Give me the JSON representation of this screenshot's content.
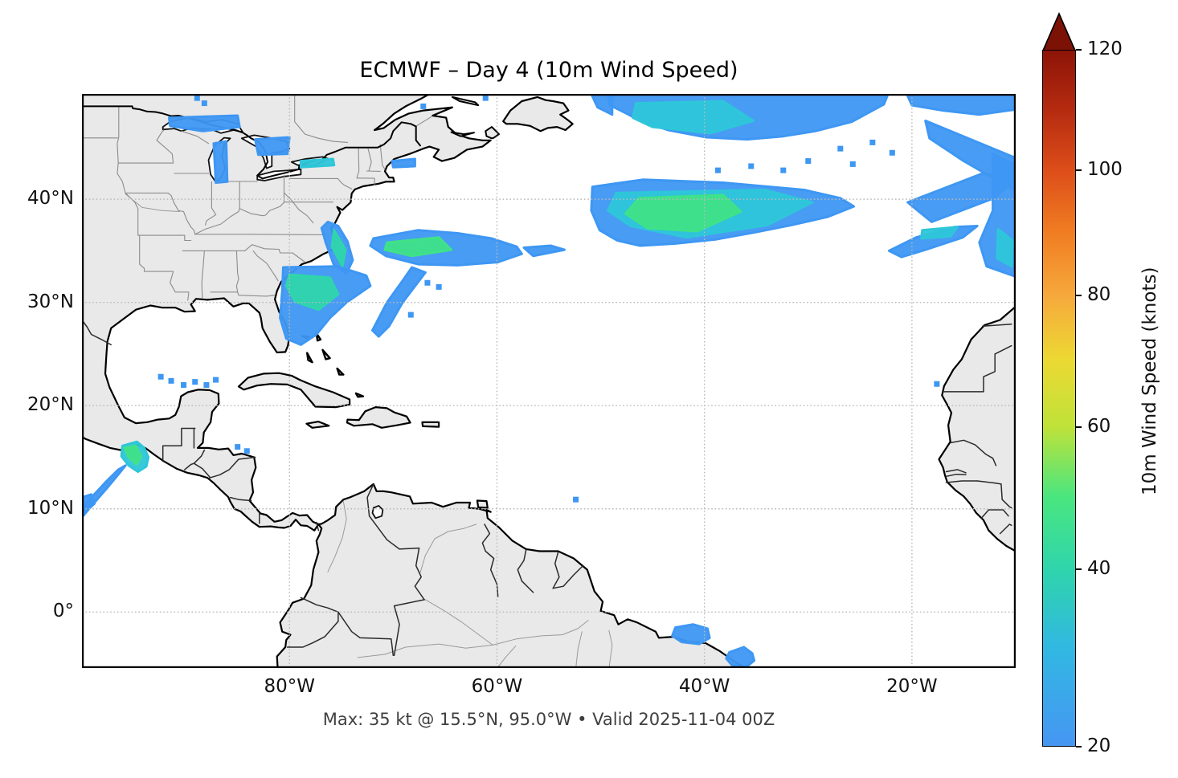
{
  "figure": {
    "title": "ECMWF – Day 4 (10m Wind Speed)",
    "caption": "Max: 35 kt @ 15.5°N, 95.0°W • Valid 2025-11-04 00Z",
    "background": "#ffffff"
  },
  "axes": {
    "x_ticks": [
      {
        "label": "80°W",
        "lon": -80
      },
      {
        "label": "60°W",
        "lon": -60
      },
      {
        "label": "40°W",
        "lon": -40
      },
      {
        "label": "20°W",
        "lon": -20
      }
    ],
    "y_ticks": [
      {
        "label": "40°N",
        "lat": 40
      },
      {
        "label": "30°N",
        "lat": 30
      },
      {
        "label": "20°N",
        "lat": 20
      },
      {
        "label": "10°N",
        "lat": 10
      },
      {
        "label": "0°",
        "lat": 0
      }
    ],
    "extent": {
      "lon_min": -100,
      "lon_max": -10,
      "lat_min": -5.45,
      "lat_max": 50.2
    },
    "grid_lats": [
      40,
      30,
      20,
      10,
      0
    ],
    "grid_lons": [
      -80,
      -60,
      -40,
      -20
    ]
  },
  "colorbar": {
    "label": "10m Wind Speed (knots)",
    "ticks": [
      20,
      40,
      60,
      80,
      100,
      120
    ],
    "vmin": 20,
    "vmax": 120,
    "gamma": 0.85,
    "over_color": "#7c1105",
    "stops": [
      {
        "v": 20,
        "c": "#4696f2"
      },
      {
        "v": 30,
        "c": "#31b8e2"
      },
      {
        "v": 40,
        "c": "#2fd5ab"
      },
      {
        "v": 50,
        "c": "#4ae67f"
      },
      {
        "v": 60,
        "c": "#bfe239"
      },
      {
        "v": 70,
        "c": "#ecd933"
      },
      {
        "v": 80,
        "c": "#f6a83c"
      },
      {
        "v": 90,
        "c": "#f07d22"
      },
      {
        "v": 100,
        "c": "#dd4e1a"
      },
      {
        "v": 110,
        "c": "#b52b10"
      },
      {
        "v": 120,
        "c": "#8d1407"
      }
    ]
  },
  "chart_data": {
    "type": "heatmap",
    "units": "knots",
    "field": "10m Wind Speed",
    "model": "ECMWF",
    "lead": "Day 4",
    "valid": "2025-11-04 00Z",
    "shading_threshold_kt": 20,
    "max": {
      "value_kt": 35,
      "lat": 15.5,
      "lon": -95.0
    },
    "land_color": "#e9e9e9",
    "ocean_color": "#ffffff",
    "speck_fill": "#3e97f3",
    "areas": [
      {
        "name": "natl-top-band",
        "kt": 24,
        "fill": "#3e97f3",
        "pts": [
          [
            -49.3,
            50.2
          ],
          [
            -22.3,
            50.2
          ],
          [
            -22.7,
            49.2
          ],
          [
            -25.8,
            47.5
          ],
          [
            -29.3,
            46.6
          ],
          [
            -32.4,
            46.1
          ],
          [
            -35.9,
            45.8
          ],
          [
            -39.8,
            46.0
          ],
          [
            -43.5,
            46.7
          ],
          [
            -46.0,
            47.5
          ],
          [
            -47.7,
            48.4
          ],
          [
            -49.1,
            49.1
          ]
        ]
      },
      {
        "name": "natl-top-core",
        "kt": 29,
        "fill": "#2ec6d9",
        "pts": [
          [
            -46.6,
            49.3
          ],
          [
            -38.2,
            49.5
          ],
          [
            -35.3,
            47.6
          ],
          [
            -39.4,
            46.4
          ],
          [
            -45.0,
            47.0
          ],
          [
            -46.9,
            47.9
          ]
        ]
      },
      {
        "name": "natl-topright",
        "kt": 23,
        "fill": "#3e97f3",
        "pts": [
          [
            -20.5,
            50.2
          ],
          [
            -10.0,
            50.2
          ],
          [
            -10.0,
            48.7
          ],
          [
            -13.5,
            48.2
          ],
          [
            -17.0,
            48.6
          ],
          [
            -20.0,
            49.1
          ]
        ]
      },
      {
        "name": "natl-tr-diag",
        "kt": 23,
        "fill": "#3e97f3",
        "pts": [
          [
            -18.7,
            47.6
          ],
          [
            -10.0,
            44.0
          ],
          [
            -10.0,
            40.8
          ],
          [
            -15.0,
            43.7
          ],
          [
            -18.3,
            45.9
          ]
        ]
      },
      {
        "name": "natl-main-band",
        "kt": 25,
        "fill": "#3e97f3",
        "pts": [
          [
            -50.8,
            41.2
          ],
          [
            -45.9,
            41.9
          ],
          [
            -38.2,
            41.6
          ],
          [
            -30.4,
            40.9
          ],
          [
            -26.9,
            40.1
          ],
          [
            -25.6,
            39.3
          ],
          [
            -28.1,
            38.3
          ],
          [
            -31.6,
            37.5
          ],
          [
            -35.1,
            36.8
          ],
          [
            -38.9,
            36.1
          ],
          [
            -42.8,
            35.7
          ],
          [
            -46.2,
            35.5
          ],
          [
            -48.4,
            36.0
          ],
          [
            -50.1,
            37.0
          ],
          [
            -50.9,
            38.9
          ]
        ]
      },
      {
        "name": "natl-main-mid",
        "kt": 29,
        "fill": "#2ec6d9",
        "pts": [
          [
            -48.5,
            40.6
          ],
          [
            -34.2,
            40.9
          ],
          [
            -29.6,
            39.7
          ],
          [
            -33.9,
            37.5
          ],
          [
            -41.7,
            36.3
          ],
          [
            -47.1,
            37.4
          ],
          [
            -49.3,
            38.9
          ]
        ]
      },
      {
        "name": "natl-main-core",
        "kt": 33,
        "fill": "#3fe288",
        "pts": [
          [
            -46.3,
            40.1
          ],
          [
            -38.2,
            40.4
          ],
          [
            -36.5,
            38.8
          ],
          [
            -40.7,
            36.9
          ],
          [
            -45.5,
            37.2
          ],
          [
            -47.6,
            38.6
          ]
        ]
      },
      {
        "name": "natl-right-band",
        "kt": 24,
        "fill": "#3e97f3",
        "pts": [
          [
            -12.2,
            44.4
          ],
          [
            -10.0,
            43.3
          ],
          [
            -10.0,
            32.5
          ],
          [
            -12.8,
            33.5
          ],
          [
            -13.5,
            35.8
          ],
          [
            -12.2,
            38.9
          ]
        ]
      },
      {
        "name": "natl-right-core",
        "kt": 28,
        "fill": "#2ec6d9",
        "pts": [
          [
            -11.7,
            37.1
          ],
          [
            -10.3,
            36.0
          ],
          [
            -10.4,
            33.5
          ],
          [
            -11.8,
            34.3
          ]
        ]
      },
      {
        "name": "natl-mid-diag",
        "kt": 23,
        "fill": "#3e97f3",
        "pts": [
          [
            -20.4,
            39.7
          ],
          [
            -13.2,
            42.5
          ],
          [
            -10.0,
            41.9
          ],
          [
            -12.1,
            40.1
          ],
          [
            -18.1,
            37.8
          ]
        ]
      },
      {
        "name": "natl-low-diag",
        "kt": 24,
        "fill": "#3e97f3",
        "pts": [
          [
            -22.2,
            35.0
          ],
          [
            -19.6,
            36.3
          ],
          [
            -15.9,
            37.3
          ],
          [
            -13.7,
            37.4
          ],
          [
            -15.1,
            36.3
          ],
          [
            -18.7,
            35.1
          ],
          [
            -21.0,
            34.4
          ]
        ]
      },
      {
        "name": "natl-low-core",
        "kt": 28,
        "fill": "#2ec6d9",
        "pts": [
          [
            -19.0,
            37.0
          ],
          [
            -15.6,
            37.3
          ],
          [
            -16.3,
            36.4
          ],
          [
            -19.1,
            36.2
          ]
        ]
      },
      {
        "name": "carolina-coast",
        "kt": 26,
        "fill": "#3e97f3",
        "pts": [
          [
            -76.3,
            37.8
          ],
          [
            -75.3,
            37.4
          ],
          [
            -74.4,
            35.9
          ],
          [
            -73.9,
            34.1
          ],
          [
            -74.5,
            32.8
          ],
          [
            -75.7,
            33.6
          ],
          [
            -76.5,
            35.8
          ],
          [
            -76.9,
            37.2
          ]
        ]
      },
      {
        "name": "carolina-core",
        "kt": 30,
        "fill": "#2fd5ab",
        "pts": [
          [
            -75.7,
            37.0
          ],
          [
            -74.6,
            35.1
          ],
          [
            -74.9,
            33.5
          ],
          [
            -75.9,
            35.4
          ]
        ]
      },
      {
        "name": "gulfstream-oval",
        "kt": 26,
        "fill": "#3e97f3",
        "pts": [
          [
            -71.9,
            36.2
          ],
          [
            -67.6,
            37.0
          ],
          [
            -63.8,
            36.7
          ],
          [
            -60.5,
            36.2
          ],
          [
            -58.1,
            35.4
          ],
          [
            -57.6,
            34.7
          ],
          [
            -59.9,
            33.9
          ],
          [
            -63.8,
            33.6
          ],
          [
            -67.6,
            33.7
          ],
          [
            -70.7,
            34.5
          ],
          [
            -72.2,
            35.5
          ]
        ]
      },
      {
        "name": "gulfstream-core",
        "kt": 32,
        "fill": "#3fe288",
        "pts": [
          [
            -70.6,
            35.8
          ],
          [
            -65.6,
            36.3
          ],
          [
            -64.4,
            35.1
          ],
          [
            -68.2,
            34.5
          ],
          [
            -70.8,
            35.1
          ]
        ]
      },
      {
        "name": "gulfstream-tail",
        "kt": 23,
        "fill": "#3e97f3",
        "pts": [
          [
            -57.4,
            35.3
          ],
          [
            -54.8,
            35.5
          ],
          [
            -53.5,
            35.1
          ],
          [
            -56.5,
            34.5
          ]
        ]
      },
      {
        "name": "se-coast-blob",
        "kt": 26,
        "fill": "#3e97f3",
        "pts": [
          [
            -80.6,
            33.4
          ],
          [
            -75.4,
            33.5
          ],
          [
            -72.6,
            32.6
          ],
          [
            -72.2,
            31.6
          ],
          [
            -74.5,
            30.0
          ],
          [
            -76.1,
            28.5
          ],
          [
            -77.4,
            26.9
          ],
          [
            -78.9,
            25.9
          ],
          [
            -80.3,
            26.5
          ],
          [
            -80.9,
            28.5
          ],
          [
            -80.7,
            31.1
          ]
        ]
      },
      {
        "name": "se-coast-core",
        "kt": 29,
        "fill": "#2fd5ab",
        "pts": [
          [
            -80.0,
            32.7
          ],
          [
            -76.1,
            32.4
          ],
          [
            -75.3,
            30.8
          ],
          [
            -77.2,
            29.3
          ],
          [
            -79.5,
            30.1
          ],
          [
            -80.3,
            31.6
          ]
        ]
      },
      {
        "name": "se-diag-streak",
        "kt": 23,
        "fill": "#3e97f3",
        "pts": [
          [
            -68.2,
            33.4
          ],
          [
            -66.9,
            32.9
          ],
          [
            -69.1,
            30.0
          ],
          [
            -70.4,
            27.7
          ],
          [
            -71.4,
            26.7
          ],
          [
            -72.0,
            27.3
          ],
          [
            -70.6,
            30.0
          ],
          [
            -69.1,
            32.1
          ]
        ]
      },
      {
        "name": "lake-superior-patch",
        "kt": 22,
        "fill": "#3e97f3",
        "pts": [
          [
            -91.6,
            47.9
          ],
          [
            -85.0,
            48.1
          ],
          [
            -84.8,
            47.0
          ],
          [
            -88.4,
            46.6
          ],
          [
            -91.5,
            47.1
          ]
        ]
      },
      {
        "name": "lake-huron-patch",
        "kt": 22,
        "fill": "#3e97f3",
        "pts": [
          [
            -83.3,
            45.8
          ],
          [
            -80.0,
            46.0
          ],
          [
            -80.2,
            44.4
          ],
          [
            -83.0,
            44.3
          ]
        ]
      },
      {
        "name": "lake-michigan-patch",
        "kt": 22,
        "fill": "#3e97f3",
        "pts": [
          [
            -87.3,
            45.4
          ],
          [
            -86.1,
            45.6
          ],
          [
            -86.0,
            41.7
          ],
          [
            -87.1,
            41.6
          ]
        ]
      },
      {
        "name": "lake-erie-line",
        "kt": 27,
        "fill": "#2ec6d9",
        "pts": [
          [
            -78.9,
            43.7
          ],
          [
            -75.8,
            43.9
          ],
          [
            -75.7,
            43.3
          ],
          [
            -78.9,
            43.1
          ]
        ]
      },
      {
        "name": "maine-coast-line",
        "kt": 22,
        "fill": "#3e97f3",
        "pts": [
          [
            -70.1,
            43.7
          ],
          [
            -67.9,
            43.9
          ],
          [
            -67.9,
            43.2
          ],
          [
            -70.0,
            43.1
          ]
        ]
      },
      {
        "name": "nfld-corner",
        "kt": 22,
        "fill": "#3e97f3",
        "pts": [
          [
            -50.9,
            50.2
          ],
          [
            -48.9,
            50.2
          ],
          [
            -48.9,
            48.2
          ],
          [
            -50.3,
            48.9
          ]
        ]
      },
      {
        "name": "tehuantepec-jet",
        "kt": 30,
        "fill": "#2ec6d9",
        "pts": [
          [
            -96.1,
            16.1
          ],
          [
            -94.7,
            16.5
          ],
          [
            -94.0,
            15.9
          ],
          [
            -93.6,
            15.0
          ],
          [
            -93.8,
            14.1
          ],
          [
            -94.6,
            13.6
          ],
          [
            -95.5,
            14.2
          ],
          [
            -96.2,
            15.1
          ]
        ]
      },
      {
        "name": "tehuantepec-core",
        "kt": 35,
        "fill": "#3fe288",
        "pts": [
          [
            -95.9,
            15.9
          ],
          [
            -94.8,
            16.1
          ],
          [
            -94.3,
            15.1
          ],
          [
            -94.7,
            14.3
          ],
          [
            -95.5,
            15.0
          ]
        ]
      },
      {
        "name": "tehuantepec-tail",
        "kt": 23,
        "fill": "#3e97f3",
        "pts": [
          [
            -95.8,
            14.2
          ],
          [
            -96.6,
            13.2
          ],
          [
            -97.6,
            12.0
          ],
          [
            -98.8,
            10.6
          ],
          [
            -99.9,
            9.3
          ],
          [
            -100.0,
            10.1
          ],
          [
            -98.9,
            11.3
          ],
          [
            -97.7,
            12.6
          ],
          [
            -96.5,
            13.8
          ]
        ]
      },
      {
        "name": "left-edge-blob",
        "kt": 24,
        "fill": "#3e97f3",
        "pts": [
          [
            -100.0,
            11.1
          ],
          [
            -99.1,
            11.4
          ],
          [
            -98.8,
            10.5
          ],
          [
            -99.7,
            9.7
          ],
          [
            -100.0,
            9.8
          ]
        ]
      },
      {
        "name": "brazil-coast-1",
        "kt": 24,
        "fill": "#3e97f3",
        "pts": [
          [
            -42.8,
            -1.5
          ],
          [
            -41.1,
            -1.2
          ],
          [
            -39.7,
            -1.6
          ],
          [
            -39.5,
            -2.5
          ],
          [
            -40.5,
            -3.1
          ],
          [
            -42.2,
            -2.9
          ],
          [
            -43.1,
            -2.3
          ]
        ]
      },
      {
        "name": "brazil-coast-2",
        "kt": 24,
        "fill": "#3e97f3",
        "pts": [
          [
            -37.6,
            -3.9
          ],
          [
            -36.2,
            -3.4
          ],
          [
            -35.4,
            -4.0
          ],
          [
            -35.2,
            -4.7
          ],
          [
            -36.0,
            -5.35
          ],
          [
            -37.3,
            -5.2
          ],
          [
            -37.9,
            -4.5
          ]
        ]
      }
    ],
    "specks": [
      [
        -26.9,
        44.9
      ],
      [
        -23.8,
        45.5
      ],
      [
        -21.9,
        44.5
      ],
      [
        -30.0,
        43.7
      ],
      [
        -25.7,
        43.4
      ],
      [
        -32.4,
        42.8
      ],
      [
        -35.5,
        43.2
      ],
      [
        -38.7,
        42.8
      ],
      [
        -66.7,
        31.9
      ],
      [
        -65.6,
        31.5
      ],
      [
        -68.3,
        28.8
      ],
      [
        -88.9,
        49.8
      ],
      [
        -88.2,
        49.3
      ],
      [
        -67.1,
        49.0
      ],
      [
        -61.1,
        49.8
      ],
      [
        -92.4,
        22.8
      ],
      [
        -91.4,
        22.4
      ],
      [
        -90.2,
        22.0
      ],
      [
        -89.1,
        22.3
      ],
      [
        -88.0,
        22.0
      ],
      [
        -87.1,
        22.5
      ],
      [
        -85.0,
        16.0
      ],
      [
        -84.1,
        15.6
      ],
      [
        -52.4,
        10.9
      ],
      [
        -17.6,
        22.1
      ]
    ]
  }
}
